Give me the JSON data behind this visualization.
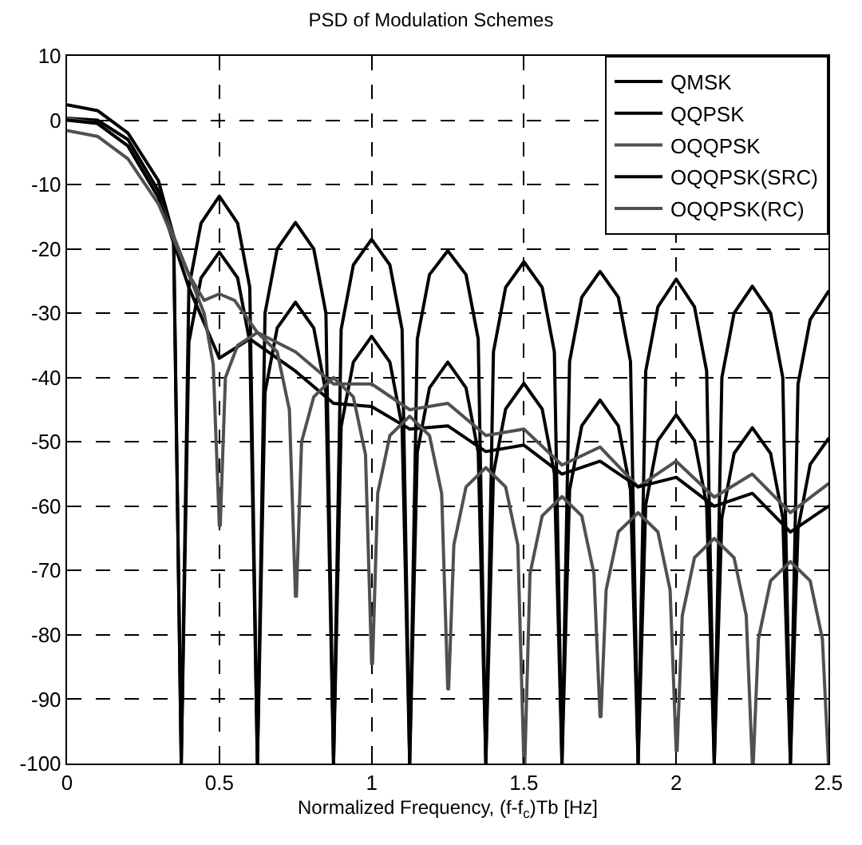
{
  "chart_data": {
    "type": "line",
    "title": "PSD of Modulation Schemes",
    "xlabel": "Normalized Frequency, (f-f$_{c}$)Tb [Hz]",
    "xlim": [
      0,
      2.5
    ],
    "xticks": [
      0,
      0.5,
      1,
      1.5,
      2,
      2.5
    ],
    "ylim": [
      -100,
      10
    ],
    "yticks": [
      -100,
      -90,
      -80,
      -70,
      -60,
      -50,
      -40,
      -30,
      -20,
      -10,
      0,
      10
    ],
    "grid": true,
    "legend": "top right",
    "line_style": "solid",
    "marker": "none",
    "x": [
      0,
      0.1,
      0.2,
      0.3,
      0.35,
      0.375,
      0.4,
      0.44,
      0.5,
      0.56,
      0.6,
      0.625,
      0.65,
      0.69,
      0.75,
      0.81,
      0.85,
      0.875,
      0.9,
      0.94,
      1.0,
      1.06,
      1.1,
      1.125,
      1.15,
      1.19,
      1.25,
      1.31,
      1.35,
      1.375,
      1.4,
      1.44,
      1.5,
      1.56,
      1.6,
      1.625,
      1.65,
      1.69,
      1.75,
      1.81,
      1.85,
      1.875,
      1.9,
      1.94,
      2.0,
      2.06,
      2.1,
      2.125,
      2.15,
      2.19,
      2.25,
      2.31,
      2.35,
      2.375,
      2.4,
      2.44,
      2.5
    ],
    "series": [
      {
        "name": "QMSK",
        "color": "#000000",
        "values": [
          2.4,
          1.5,
          -2,
          -9.4,
          -18,
          -100,
          -26,
          -16,
          -11.8,
          -16,
          -26,
          -100,
          -30,
          -20,
          -15.9,
          -20,
          -30,
          -100,
          -32.5,
          -22.5,
          -18.5,
          -22.5,
          -32.5,
          -100,
          -34,
          -24,
          -20.3,
          -24,
          -34,
          -100,
          -36,
          -26,
          -22,
          -26,
          -36,
          -100,
          -37.5,
          -27.5,
          -23.5,
          -27.5,
          -37.5,
          -100,
          -39,
          -29,
          -24.7,
          -29,
          -39,
          -100,
          -40,
          -30,
          -25.8,
          -30,
          -40,
          -100,
          -41,
          -31,
          -26.6
        ]
      },
      {
        "name": "QQPSK",
        "color": "#000000",
        "values": [
          0.3,
          0,
          -3,
          -11,
          -19,
          -100,
          -34.5,
          -24.5,
          -20.5,
          -24.5,
          -34.5,
          -100,
          -42.3,
          -32.3,
          -28.3,
          -32.3,
          -42.3,
          -100,
          -47.6,
          -37.6,
          -33.6,
          -37.6,
          -47.6,
          -100,
          -51.6,
          -41.6,
          -37.6,
          -41.6,
          -51.6,
          -100,
          -54.9,
          -44.9,
          -40.9,
          -44.9,
          -54.9,
          -100,
          -57.5,
          -47.5,
          -43.5,
          -47.5,
          -57.5,
          -100,
          -59.8,
          -49.8,
          -45.8,
          -49.8,
          -59.8,
          -100,
          -61.8,
          -51.8,
          -47.8,
          -51.8,
          -61.8,
          -100,
          -63.5,
          -53.5,
          -49.5
        ]
      },
      {
        "name": "OQQPSK",
        "color": "#505050",
        "x": [
          0,
          0.1,
          0.2,
          0.3,
          0.4,
          0.45,
          0.5,
          0.55,
          0.625,
          0.75,
          0.875,
          1.0,
          1.125,
          1.25,
          1.375,
          1.5,
          1.625,
          1.75,
          1.875,
          2.0,
          2.125,
          2.25,
          2.375,
          2.5
        ],
        "values": [
          0.3,
          -0.5,
          -4,
          -12,
          -24,
          -28,
          -27,
          -28,
          -33,
          -36,
          -41,
          -41,
          -45,
          -44,
          -49,
          -48,
          -53.6,
          -50.8,
          -57,
          -53,
          -58.6,
          -55,
          -61,
          -56.5
        ]
      },
      {
        "name": "OQQPSK(SRC)",
        "color": "#000000",
        "x": [
          0,
          0.1,
          0.2,
          0.3,
          0.4,
          0.5,
          0.6,
          0.75,
          0.875,
          1.0,
          1.125,
          1.25,
          1.375,
          1.5,
          1.625,
          1.75,
          1.875,
          2.0,
          2.125,
          2.25,
          2.375,
          2.5
        ],
        "values": [
          0,
          -0.5,
          -4,
          -12,
          -26,
          -37,
          -34,
          -39,
          -44,
          -44.5,
          -48,
          -47.5,
          -51.5,
          -50.5,
          -55,
          -53,
          -57,
          -55.5,
          -60,
          -58,
          -64,
          -60
        ]
      },
      {
        "name": "OQQPSK(RC)",
        "color": "#505050",
        "x": [
          0,
          0.1,
          0.2,
          0.3,
          0.4,
          0.45,
          0.48,
          0.5,
          0.503,
          0.52,
          0.56,
          0.625,
          0.69,
          0.73,
          0.75,
          0.753,
          0.77,
          0.81,
          0.875,
          0.94,
          0.98,
          1.0,
          1.003,
          1.02,
          1.06,
          1.125,
          1.19,
          1.23,
          1.25,
          1.253,
          1.27,
          1.31,
          1.375,
          1.44,
          1.48,
          1.5,
          1.503,
          1.52,
          1.56,
          1.625,
          1.69,
          1.73,
          1.75,
          1.753,
          1.77,
          1.81,
          1.875,
          1.94,
          1.98,
          2.0,
          2.003,
          2.02,
          2.06,
          2.125,
          2.19,
          2.23,
          2.25,
          2.253,
          2.27,
          2.31,
          2.375,
          2.44,
          2.48,
          2.5
        ],
        "values": [
          -1.6,
          -2.5,
          -6,
          -13,
          -24,
          -30,
          -38,
          -63,
          -63,
          -40,
          -35,
          -33,
          -36,
          -45,
          -74,
          -74,
          -50,
          -43,
          -40,
          -43,
          -52,
          -84.5,
          -84.5,
          -58,
          -49,
          -46,
          -49,
          -58,
          -88.4,
          -88.4,
          -66,
          -57,
          -54,
          -57,
          -66,
          -100,
          -100,
          -70.5,
          -61.5,
          -58.5,
          -61.5,
          -70.5,
          -92.7,
          -92.7,
          -73,
          -64,
          -61,
          -64,
          -73,
          -98,
          -98,
          -77,
          -68,
          -65,
          -68,
          -77,
          -100,
          -100,
          -80.6,
          -71.6,
          -68.6,
          -71.6,
          -80.6,
          -100
        ]
      }
    ]
  }
}
